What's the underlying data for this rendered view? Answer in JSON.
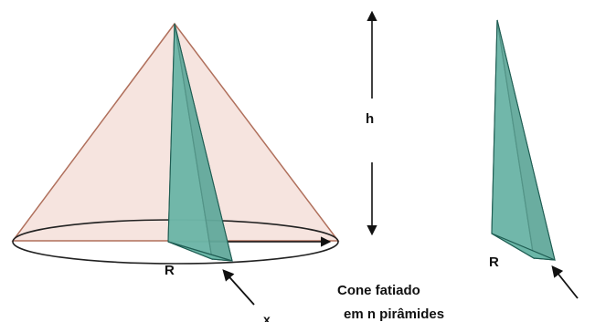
{
  "labels": {
    "height": "h",
    "radius_main": "R",
    "base_arc_main": "x",
    "radius_slice": "R",
    "caption_line1": "Cone fatiado",
    "caption_line2": "em n pirâmides"
  },
  "colors": {
    "cone_fill": "#f6e4df",
    "cone_edge": "#b0705c",
    "pyramid_fill": "#5aa89a",
    "pyramid_face_light": "#7dc1b2",
    "pyramid_face_dark": "#3f8a7d",
    "pyramid_edge": "#1f5d53",
    "arrow": "#111111"
  },
  "icons": {
    "height_arrow": "double-vertical-arrow-icon",
    "pointer_main": "diagonal-pointer-arrow-icon",
    "pointer_slice": "diagonal-pointer-arrow-icon"
  }
}
